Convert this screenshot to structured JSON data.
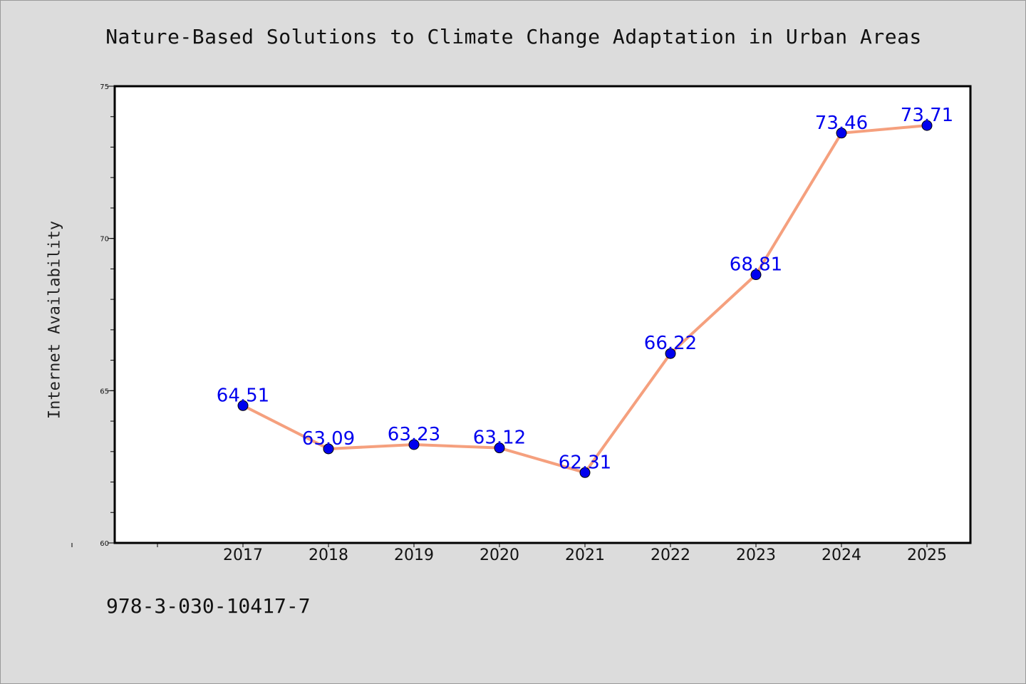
{
  "chart_data": {
    "type": "line",
    "title": "Nature-Based Solutions to Climate Change Adaptation in Urban Areas",
    "xlabel": "",
    "ylabel": "Internet Availability",
    "categories": [
      "2017",
      "2018",
      "2019",
      "2020",
      "2021",
      "2022",
      "2023",
      "2024",
      "2025"
    ],
    "series": [
      {
        "values": [
          64.51,
          63.09,
          63.23,
          63.12,
          62.31,
          66.22,
          68.81,
          73.46,
          73.71
        ]
      }
    ],
    "data_labels": [
      "64.51",
      "63.09",
      "63.23",
      "63.12",
      "62.31",
      "66.22",
      "68.81",
      "73.46",
      "73.71"
    ],
    "ylim": [
      60,
      75
    ],
    "y_ticks": [
      60,
      65,
      70,
      75
    ],
    "y_tick_labels": [
      "60",
      "65",
      "70",
      "75"
    ],
    "y_minor_step": 1,
    "grid": false,
    "legend": "none",
    "colors": {
      "line": "#f5a07e",
      "marker": "#0000ee",
      "marker_edge": "#000000",
      "data_label": "#0000ee",
      "background": "#dcdcdc",
      "plot_background": "#ffffff",
      "axis": "#000000"
    }
  },
  "footer": {
    "isbn": "978-3-030-10417-7"
  }
}
